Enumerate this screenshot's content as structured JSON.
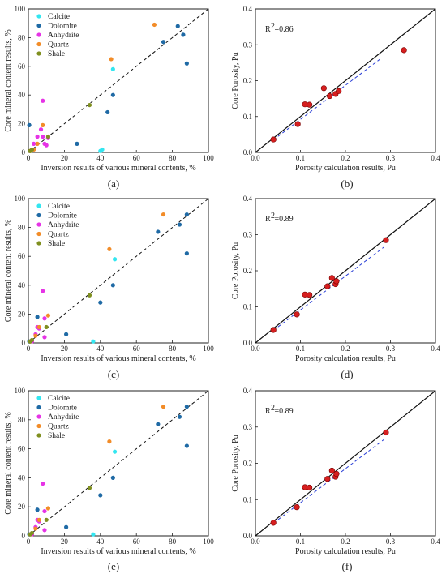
{
  "colors": {
    "Calcite": "#33e6f0",
    "Dolomite": "#1f6aa5",
    "Anhydrite": "#e633e6",
    "Quartz": "#f28c28",
    "Shale": "#7f8f1f",
    "porosity_point": "#d61f1f",
    "fit_line": "#2a3fd6"
  },
  "chart_data": [
    {
      "panel": "(a)",
      "type": "scatter",
      "xlabel": "Inversion results of various mineral contents, %",
      "ylabel": "Core mineral content results, %",
      "xlim": [
        0,
        100
      ],
      "ylim": [
        0,
        100
      ],
      "xticks": [
        0,
        20,
        40,
        60,
        80,
        100
      ],
      "yticks": [
        0,
        20,
        40,
        60,
        80,
        100
      ],
      "reference_line": "dashed y=x",
      "legend_position": "top-left",
      "series": [
        {
          "name": "Calcite",
          "points": [
            [
              40,
              1
            ],
            [
              41,
              2
            ],
            [
              47,
              58
            ]
          ]
        },
        {
          "name": "Dolomite",
          "points": [
            [
              0.5,
              19
            ],
            [
              27,
              6
            ],
            [
              44,
              28
            ],
            [
              47,
              40
            ],
            [
              75,
              77
            ],
            [
              83,
              88
            ],
            [
              86,
              82
            ],
            [
              88,
              62
            ]
          ]
        },
        {
          "name": "Anhydrite",
          "points": [
            [
              3,
              6
            ],
            [
              5,
              11
            ],
            [
              7,
              16
            ],
            [
              8,
              36
            ],
            [
              8,
              11
            ],
            [
              9,
              6
            ],
            [
              10,
              5
            ],
            [
              11,
              10
            ]
          ]
        },
        {
          "name": "Quartz",
          "points": [
            [
              1,
              1
            ],
            [
              3,
              2
            ],
            [
              5,
              6
            ],
            [
              8,
              19
            ],
            [
              46,
              65
            ],
            [
              70,
              89
            ]
          ]
        },
        {
          "name": "Shale",
          "points": [
            [
              1,
              1
            ],
            [
              2,
              2
            ],
            [
              11,
              11
            ],
            [
              34,
              33
            ]
          ]
        }
      ]
    },
    {
      "panel": "(b)",
      "type": "scatter",
      "xlabel": "Porosity calculation results, Pu",
      "ylabel": "Core Porosity, Pu",
      "xlim": [
        0,
        0.4
      ],
      "ylim": [
        0,
        0.4
      ],
      "xticks": [
        0,
        0.1,
        0.2,
        0.3,
        0.4
      ],
      "yticks": [
        0,
        0.1,
        0.2,
        0.3,
        0.4
      ],
      "xticklabels": [
        "0.0",
        "0.1",
        "0.2",
        "0.3",
        "0.4"
      ],
      "yticklabels": [
        "0.0",
        "0.1",
        "0.2",
        "0.3",
        "0.4"
      ],
      "r2_label": "R",
      "r2_value": "=0.86",
      "reference_line": "solid y=x",
      "fit_line": [
        [
          0.04,
          0.035
        ],
        [
          0.28,
          0.263
        ]
      ],
      "points": [
        [
          0.04,
          0.036
        ],
        [
          0.094,
          0.079
        ],
        [
          0.11,
          0.134
        ],
        [
          0.12,
          0.133
        ],
        [
          0.152,
          0.179
        ],
        [
          0.165,
          0.157
        ],
        [
          0.178,
          0.163
        ],
        [
          0.185,
          0.171
        ],
        [
          0.33,
          0.285
        ]
      ]
    },
    {
      "panel": "(c)",
      "type": "scatter",
      "xlabel": "Inversion results of various mineral contents, %",
      "ylabel": "Core mineral content results, %",
      "xlim": [
        0,
        100
      ],
      "ylim": [
        0,
        100
      ],
      "xticks": [
        0,
        20,
        40,
        60,
        80,
        100
      ],
      "yticks": [
        0,
        20,
        40,
        60,
        80,
        100
      ],
      "reference_line": "dashed y=x",
      "legend_position": "top-left",
      "series": [
        {
          "name": "Calcite",
          "points": [
            [
              36,
              1
            ],
            [
              48,
              58
            ]
          ]
        },
        {
          "name": "Dolomite",
          "points": [
            [
              0.5,
              1
            ],
            [
              5,
              18
            ],
            [
              21,
              6
            ],
            [
              40,
              28
            ],
            [
              47,
              40
            ],
            [
              72,
              77
            ],
            [
              84,
              82
            ],
            [
              88,
              89
            ],
            [
              88,
              62
            ]
          ]
        },
        {
          "name": "Anhydrite",
          "points": [
            [
              2,
              1
            ],
            [
              4,
              6
            ],
            [
              5,
              11
            ],
            [
              6,
              10
            ],
            [
              8,
              36
            ],
            [
              9,
              17
            ],
            [
              9,
              4
            ]
          ]
        },
        {
          "name": "Quartz",
          "points": [
            [
              1,
              1
            ],
            [
              4,
              5
            ],
            [
              6,
              11
            ],
            [
              11,
              19
            ],
            [
              45,
              65
            ],
            [
              75,
              89
            ]
          ]
        },
        {
          "name": "Shale",
          "points": [
            [
              1,
              1
            ],
            [
              2,
              2
            ],
            [
              10,
              11
            ],
            [
              34,
              33
            ]
          ]
        }
      ]
    },
    {
      "panel": "(d)",
      "type": "scatter",
      "xlabel": "Porosity calculation results, Pu",
      "ylabel": "Core Porosity, Pu",
      "xlim": [
        0,
        0.4
      ],
      "ylim": [
        0,
        0.4
      ],
      "xticks": [
        0,
        0.1,
        0.2,
        0.3,
        0.4
      ],
      "yticks": [
        0,
        0.1,
        0.2,
        0.3,
        0.4
      ],
      "xticklabels": [
        "0.0",
        "0.1",
        "0.2",
        "0.3",
        "0.4"
      ],
      "yticklabels": [
        "0.0",
        "0.1",
        "0.2",
        "0.3",
        "0.4"
      ],
      "r2_label": "R",
      "r2_value": "=0.89",
      "reference_line": "solid y=x",
      "fit_line": [
        [
          0.04,
          0.035
        ],
        [
          0.285,
          0.265
        ]
      ],
      "points": [
        [
          0.04,
          0.036
        ],
        [
          0.092,
          0.079
        ],
        [
          0.11,
          0.134
        ],
        [
          0.12,
          0.133
        ],
        [
          0.16,
          0.157
        ],
        [
          0.17,
          0.18
        ],
        [
          0.178,
          0.163
        ],
        [
          0.18,
          0.171
        ],
        [
          0.29,
          0.285
        ]
      ]
    },
    {
      "panel": "(e)",
      "type": "scatter",
      "xlabel": "Inversion results of various mineral contents, %",
      "ylabel": "Core mineral content results, %",
      "xlim": [
        0,
        100
      ],
      "ylim": [
        0,
        100
      ],
      "xticks": [
        0,
        20,
        40,
        60,
        80,
        100
      ],
      "yticks": [
        0,
        20,
        40,
        60,
        80,
        100
      ],
      "reference_line": "dashed y=x",
      "legend_position": "top-left",
      "series": [
        {
          "name": "Calcite",
          "points": [
            [
              36,
              1
            ],
            [
              48,
              58
            ]
          ]
        },
        {
          "name": "Dolomite",
          "points": [
            [
              0.5,
              1
            ],
            [
              5,
              18
            ],
            [
              21,
              6
            ],
            [
              40,
              28
            ],
            [
              47,
              40
            ],
            [
              72,
              77
            ],
            [
              84,
              82
            ],
            [
              88,
              89
            ],
            [
              88,
              62
            ]
          ]
        },
        {
          "name": "Anhydrite",
          "points": [
            [
              2,
              1
            ],
            [
              4,
              6
            ],
            [
              5,
              11
            ],
            [
              6,
              10
            ],
            [
              8,
              36
            ],
            [
              9,
              17
            ],
            [
              9,
              4
            ]
          ]
        },
        {
          "name": "Quartz",
          "points": [
            [
              1,
              1
            ],
            [
              4,
              5
            ],
            [
              6,
              11
            ],
            [
              11,
              19
            ],
            [
              45,
              65
            ],
            [
              75,
              89
            ]
          ]
        },
        {
          "name": "Shale",
          "points": [
            [
              1,
              1
            ],
            [
              2,
              2
            ],
            [
              10,
              11
            ],
            [
              34,
              33
            ]
          ]
        }
      ]
    },
    {
      "panel": "(f)",
      "type": "scatter",
      "xlabel": "Porosity calculation results, Pu",
      "ylabel": "Core Porosity, Pu",
      "xlim": [
        0,
        0.4
      ],
      "ylim": [
        0,
        0.4
      ],
      "xticks": [
        0,
        0.1,
        0.2,
        0.3,
        0.4
      ],
      "yticks": [
        0,
        0.1,
        0.2,
        0.3,
        0.4
      ],
      "xticklabels": [
        "0.0",
        "0.1",
        "0.2",
        "0.3",
        "0.4"
      ],
      "yticklabels": [
        "0.0",
        "0.1",
        "0.2",
        "0.3",
        "0.4"
      ],
      "r2_label": "R",
      "r2_value": "=0.89",
      "reference_line": "solid y=x",
      "fit_line": [
        [
          0.04,
          0.035
        ],
        [
          0.285,
          0.265
        ]
      ],
      "points": [
        [
          0.04,
          0.036
        ],
        [
          0.092,
          0.079
        ],
        [
          0.11,
          0.134
        ],
        [
          0.12,
          0.133
        ],
        [
          0.16,
          0.157
        ],
        [
          0.17,
          0.18
        ],
        [
          0.178,
          0.163
        ],
        [
          0.18,
          0.171
        ],
        [
          0.29,
          0.285
        ]
      ]
    }
  ]
}
